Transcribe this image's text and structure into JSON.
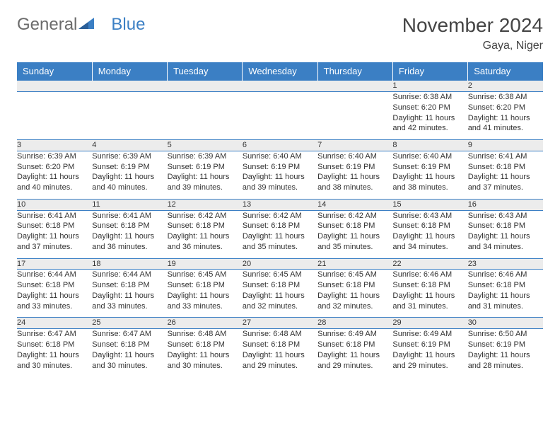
{
  "brand": {
    "part1": "General",
    "part2": "Blue"
  },
  "title": "November 2024",
  "location": "Gaya, Niger",
  "colors": {
    "header_bg": "#3b7fc4",
    "header_text": "#ffffff",
    "daynum_bg": "#ececec",
    "border": "#3b7fc4",
    "body_text": "#333333",
    "brand_gray": "#6b6b6b",
    "brand_blue": "#3b7fc4"
  },
  "dayHeaders": [
    "Sunday",
    "Monday",
    "Tuesday",
    "Wednesday",
    "Thursday",
    "Friday",
    "Saturday"
  ],
  "weeks": [
    [
      null,
      null,
      null,
      null,
      null,
      {
        "n": "1",
        "sr": "6:38 AM",
        "ss": "6:20 PM",
        "dl": "11 hours and 42 minutes."
      },
      {
        "n": "2",
        "sr": "6:38 AM",
        "ss": "6:20 PM",
        "dl": "11 hours and 41 minutes."
      }
    ],
    [
      {
        "n": "3",
        "sr": "6:39 AM",
        "ss": "6:20 PM",
        "dl": "11 hours and 40 minutes."
      },
      {
        "n": "4",
        "sr": "6:39 AM",
        "ss": "6:19 PM",
        "dl": "11 hours and 40 minutes."
      },
      {
        "n": "5",
        "sr": "6:39 AM",
        "ss": "6:19 PM",
        "dl": "11 hours and 39 minutes."
      },
      {
        "n": "6",
        "sr": "6:40 AM",
        "ss": "6:19 PM",
        "dl": "11 hours and 39 minutes."
      },
      {
        "n": "7",
        "sr": "6:40 AM",
        "ss": "6:19 PM",
        "dl": "11 hours and 38 minutes."
      },
      {
        "n": "8",
        "sr": "6:40 AM",
        "ss": "6:19 PM",
        "dl": "11 hours and 38 minutes."
      },
      {
        "n": "9",
        "sr": "6:41 AM",
        "ss": "6:18 PM",
        "dl": "11 hours and 37 minutes."
      }
    ],
    [
      {
        "n": "10",
        "sr": "6:41 AM",
        "ss": "6:18 PM",
        "dl": "11 hours and 37 minutes."
      },
      {
        "n": "11",
        "sr": "6:41 AM",
        "ss": "6:18 PM",
        "dl": "11 hours and 36 minutes."
      },
      {
        "n": "12",
        "sr": "6:42 AM",
        "ss": "6:18 PM",
        "dl": "11 hours and 36 minutes."
      },
      {
        "n": "13",
        "sr": "6:42 AM",
        "ss": "6:18 PM",
        "dl": "11 hours and 35 minutes."
      },
      {
        "n": "14",
        "sr": "6:42 AM",
        "ss": "6:18 PM",
        "dl": "11 hours and 35 minutes."
      },
      {
        "n": "15",
        "sr": "6:43 AM",
        "ss": "6:18 PM",
        "dl": "11 hours and 34 minutes."
      },
      {
        "n": "16",
        "sr": "6:43 AM",
        "ss": "6:18 PM",
        "dl": "11 hours and 34 minutes."
      }
    ],
    [
      {
        "n": "17",
        "sr": "6:44 AM",
        "ss": "6:18 PM",
        "dl": "11 hours and 33 minutes."
      },
      {
        "n": "18",
        "sr": "6:44 AM",
        "ss": "6:18 PM",
        "dl": "11 hours and 33 minutes."
      },
      {
        "n": "19",
        "sr": "6:45 AM",
        "ss": "6:18 PM",
        "dl": "11 hours and 33 minutes."
      },
      {
        "n": "20",
        "sr": "6:45 AM",
        "ss": "6:18 PM",
        "dl": "11 hours and 32 minutes."
      },
      {
        "n": "21",
        "sr": "6:45 AM",
        "ss": "6:18 PM",
        "dl": "11 hours and 32 minutes."
      },
      {
        "n": "22",
        "sr": "6:46 AM",
        "ss": "6:18 PM",
        "dl": "11 hours and 31 minutes."
      },
      {
        "n": "23",
        "sr": "6:46 AM",
        "ss": "6:18 PM",
        "dl": "11 hours and 31 minutes."
      }
    ],
    [
      {
        "n": "24",
        "sr": "6:47 AM",
        "ss": "6:18 PM",
        "dl": "11 hours and 30 minutes."
      },
      {
        "n": "25",
        "sr": "6:47 AM",
        "ss": "6:18 PM",
        "dl": "11 hours and 30 minutes."
      },
      {
        "n": "26",
        "sr": "6:48 AM",
        "ss": "6:18 PM",
        "dl": "11 hours and 30 minutes."
      },
      {
        "n": "27",
        "sr": "6:48 AM",
        "ss": "6:18 PM",
        "dl": "11 hours and 29 minutes."
      },
      {
        "n": "28",
        "sr": "6:49 AM",
        "ss": "6:18 PM",
        "dl": "11 hours and 29 minutes."
      },
      {
        "n": "29",
        "sr": "6:49 AM",
        "ss": "6:19 PM",
        "dl": "11 hours and 29 minutes."
      },
      {
        "n": "30",
        "sr": "6:50 AM",
        "ss": "6:19 PM",
        "dl": "11 hours and 28 minutes."
      }
    ]
  ],
  "labels": {
    "sunrise": "Sunrise: ",
    "sunset": "Sunset: ",
    "daylight": "Daylight: "
  }
}
